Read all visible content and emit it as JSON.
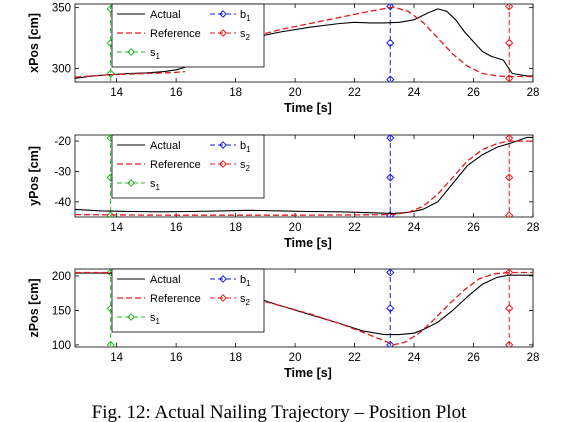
{
  "caption": "Fig. 12: Actual Nailing Trajectory – Position Plot",
  "colors": {
    "actual": "#000000",
    "reference": "#e41a1c",
    "s1": "#22bb22",
    "b1": "#1a1adc",
    "s2": "#e41a1c"
  },
  "chart_data": [
    {
      "type": "line",
      "ylabel": "xPos [cm]",
      "xlabel": "Time [s]",
      "xlim": [
        12.6,
        28
      ],
      "ylim": [
        289,
        353
      ],
      "xticks": [
        14,
        16,
        18,
        20,
        22,
        24,
        26,
        28
      ],
      "yticks": [
        300,
        350
      ],
      "grid": false,
      "legend_position": "top-left",
      "legend": {
        "actual": "Actual",
        "reference": "Reference",
        "s1": "s",
        "s1_sub": "1",
        "b1": "b",
        "b1_sub": "1",
        "s2": "s",
        "s2_sub": "2"
      },
      "series": [
        {
          "name": "Actual",
          "style": "solid",
          "color": "#000000",
          "x": [
            12.6,
            13.2,
            13.8,
            14.4,
            15.0,
            15.6,
            16.0,
            16.3
          ],
          "y": [
            292,
            294,
            295,
            296,
            296.5,
            297.5,
            299,
            301
          ]
        },
        {
          "name": "Actual",
          "style": "solid",
          "color": "#000000",
          "x": [
            18.7,
            19.5,
            20.5,
            21.5,
            22.0,
            22.5,
            23.0,
            23.5,
            24.0,
            24.5,
            24.8,
            25.1,
            25.4,
            25.7,
            26.0,
            26.3,
            26.6,
            27.0,
            27.3,
            27.8,
            28.0
          ],
          "y": [
            326,
            330,
            334,
            337,
            338,
            337.5,
            337.5,
            338,
            340,
            346,
            349,
            347,
            340,
            330,
            322,
            314,
            310,
            307,
            296,
            294,
            294
          ]
        },
        {
          "name": "Reference",
          "style": "dashed",
          "color": "#e41a1c",
          "x": [
            12.6,
            13.2,
            13.8,
            14.4,
            15.0,
            15.6,
            16.0,
            16.3
          ],
          "y": [
            293,
            294,
            295,
            295.5,
            296,
            296.5,
            297,
            297.5
          ]
        },
        {
          "name": "Reference",
          "style": "dashed",
          "color": "#e41a1c",
          "x": [
            18.7,
            19.5,
            20.5,
            21.5,
            22.5,
            23.3,
            23.8,
            24.3,
            24.8,
            25.3,
            25.8,
            26.3,
            26.8,
            27.2,
            28.0
          ],
          "y": [
            327,
            332,
            337,
            342,
            347,
            350.5,
            347,
            338,
            325,
            312,
            302,
            296,
            294,
            293.5,
            293.5
          ]
        }
      ],
      "markers": [
        {
          "name": "s",
          "sub": "1",
          "x": 13.8,
          "color": "#22bb22",
          "marker_y": [
            296,
            321,
            349
          ]
        },
        {
          "name": "b",
          "sub": "1",
          "x": 23.2,
          "color": "#1a1adc",
          "marker_y": [
            291,
            321,
            351
          ]
        },
        {
          "name": "s",
          "sub": "2",
          "x": 27.2,
          "color": "#e41a1c",
          "marker_y": [
            292,
            321,
            351
          ]
        }
      ]
    },
    {
      "type": "line",
      "ylabel": "yPos [cm]",
      "xlabel": "Time [s]",
      "xlim": [
        12.6,
        28
      ],
      "ylim": [
        -45,
        -18
      ],
      "xticks": [
        14,
        16,
        18,
        20,
        22,
        24,
        26,
        28
      ],
      "yticks": [
        -40,
        -30,
        -20
      ],
      "grid": false,
      "legend_position": "top-left",
      "legend": {
        "actual": "Actual",
        "reference": "Reference",
        "s1": "s",
        "s1_sub": "1",
        "b1": "b",
        "b1_sub": "1",
        "s2": "s",
        "s2_sub": "2"
      },
      "series": [
        {
          "name": "Actual",
          "style": "solid",
          "color": "#000000",
          "x": [
            12.6,
            13.5,
            14.5,
            15.5,
            16.5,
            17.5,
            18.5,
            19.5,
            20.5,
            21.5,
            22.5,
            23.3,
            23.8,
            24.3,
            24.8,
            25.3,
            25.8,
            26.3,
            26.8,
            27.3,
            27.8,
            28.0
          ],
          "y": [
            -42.5,
            -43,
            -43.2,
            -43.3,
            -43.2,
            -43,
            -42.8,
            -43,
            -43.2,
            -43.3,
            -43.6,
            -43.8,
            -43.5,
            -42.5,
            -40,
            -34,
            -28,
            -24.5,
            -22,
            -20.5,
            -18.8,
            -18.8
          ]
        },
        {
          "name": "Reference",
          "style": "dashed",
          "color": "#e41a1c",
          "x": [
            12.6,
            14.0,
            16.0,
            18.0,
            20.0,
            22.0,
            23.3,
            23.8,
            24.3,
            24.8,
            25.3,
            25.8,
            26.3,
            26.8,
            27.2,
            28.0
          ],
          "y": [
            -44.2,
            -44.3,
            -44.4,
            -44.4,
            -44.4,
            -44.3,
            -44.2,
            -43.5,
            -41.5,
            -37.5,
            -32,
            -26.5,
            -22.8,
            -20.8,
            -20,
            -20
          ]
        }
      ],
      "markers": [
        {
          "name": "s",
          "sub": "1",
          "x": 13.8,
          "color": "#22bb22",
          "marker_y": [
            -44.5,
            -32,
            -19
          ]
        },
        {
          "name": "b",
          "sub": "1",
          "x": 23.2,
          "color": "#1a1adc",
          "marker_y": [
            -44.5,
            -32,
            -19
          ]
        },
        {
          "name": "s",
          "sub": "2",
          "x": 27.2,
          "color": "#e41a1c",
          "marker_y": [
            -44.5,
            -32,
            -19
          ]
        }
      ]
    },
    {
      "type": "line",
      "ylabel": "zPos [cm]",
      "xlabel": "Time [s]",
      "xlim": [
        12.6,
        28
      ],
      "ylim": [
        97,
        210
      ],
      "xticks": [
        14,
        16,
        18,
        20,
        22,
        24,
        26,
        28
      ],
      "yticks": [
        100,
        150,
        200
      ],
      "grid": false,
      "legend_position": "top-left",
      "legend": {
        "actual": "Actual",
        "reference": "Reference",
        "s1": "s",
        "s1_sub": "1",
        "b1": "b",
        "b1_sub": "1",
        "s2": "s",
        "s2_sub": "2"
      },
      "series": [
        {
          "name": "Actual",
          "style": "solid",
          "color": "#000000",
          "x": [
            12.6,
            13.5,
            14.5,
            15.5,
            16.0,
            16.5
          ],
          "y": [
            204,
            204,
            203.5,
            202,
            200,
            196
          ]
        },
        {
          "name": "Actual",
          "style": "solid",
          "color": "#000000",
          "x": [
            18.7,
            19.5,
            20.5,
            21.5,
            22.3,
            23.0,
            23.5,
            24.0,
            24.3,
            24.8,
            25.3,
            25.8,
            26.3,
            26.8,
            27.2,
            28.0
          ],
          "y": [
            168,
            157,
            144,
            131,
            120,
            115,
            115,
            117,
            122,
            133,
            150,
            170,
            188,
            198,
            201,
            201
          ]
        },
        {
          "name": "Reference",
          "style": "dashed",
          "color": "#e41a1c",
          "x": [
            12.6,
            13.5,
            14.5,
            15.5,
            16.0,
            16.5
          ],
          "y": [
            205,
            205,
            204.5,
            202,
            199,
            194
          ]
        },
        {
          "name": "Reference",
          "style": "dashed",
          "color": "#e41a1c",
          "x": [
            18.7,
            19.5,
            20.5,
            21.5,
            22.3,
            23.0,
            23.3,
            23.7,
            24.2,
            24.7,
            25.2,
            25.7,
            26.2,
            26.7,
            27.2,
            28.0
          ],
          "y": [
            166,
            157,
            145,
            131,
            118,
            106,
            100,
            104,
            118,
            138,
            160,
            180,
            196,
            203,
            205,
            205
          ]
        }
      ],
      "markers": [
        {
          "name": "s",
          "sub": "1",
          "x": 13.8,
          "color": "#22bb22",
          "marker_y": [
            100,
            153,
            205
          ]
        },
        {
          "name": "b",
          "sub": "1",
          "x": 23.2,
          "color": "#1a1adc",
          "marker_y": [
            100,
            153,
            205
          ]
        },
        {
          "name": "s",
          "sub": "2",
          "x": 27.2,
          "color": "#e41a1c",
          "marker_y": [
            100,
            153,
            205
          ]
        }
      ]
    }
  ]
}
